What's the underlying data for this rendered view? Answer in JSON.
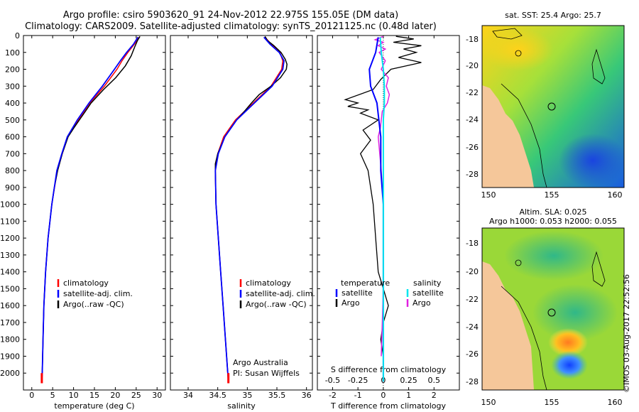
{
  "title": {
    "line1": "Argo profile: csiro 5903620_91 24-Nov-2012 22.975S 155.05E (DM data)",
    "line2": "Climatology: CARS2009. Satellite-adjusted climatology: synTS_20121125.nc (0.48d later)"
  },
  "colors": {
    "climatology": "#ff0000",
    "satellite": "#0000ff",
    "argo": "#000000",
    "sal_satellite": "#00e5ee",
    "sal_argo": "#e020e0",
    "land": "#f5c79a"
  },
  "chart_data": [
    {
      "type": "line",
      "id": "temperature",
      "xlabel": "temperature (deg C)",
      "ylabel": "",
      "xlim": [
        -2,
        32
      ],
      "ylim": [
        2100,
        0
      ],
      "xticks": [
        0,
        5,
        10,
        15,
        20,
        25,
        30
      ],
      "yticks": [
        0,
        100,
        200,
        300,
        400,
        500,
        600,
        700,
        800,
        900,
        1000,
        1100,
        1200,
        1300,
        1400,
        1500,
        1600,
        1700,
        1800,
        1900,
        2000
      ],
      "legend": [
        "climatology",
        "satellite-adj. clim.",
        "Argo(..raw -QC)"
      ],
      "series": [
        {
          "name": "climatology",
          "depth": [
            10,
            50,
            100,
            150,
            200,
            300,
            400,
            500,
            600,
            700,
            800,
            1000,
            1200,
            1400,
            1600,
            1800,
            2000,
            2050
          ],
          "values": [
            25.6,
            24.6,
            23.0,
            21.6,
            20.4,
            17.4,
            13.9,
            11.1,
            8.6,
            7.3,
            6.1,
            4.8,
            3.9,
            3.3,
            2.9,
            2.7,
            2.5,
            2.4
          ]
        },
        {
          "name": "satellite-adj. clim.",
          "depth": [
            10,
            50,
            100,
            150,
            200,
            300,
            400,
            500,
            600,
            700,
            800,
            1000,
            1200,
            1400,
            1600,
            1800,
            2000,
            2050
          ],
          "values": [
            25.4,
            24.4,
            22.7,
            21.2,
            19.8,
            16.9,
            13.7,
            10.9,
            8.5,
            7.2,
            6.0,
            4.8,
            3.9,
            3.3,
            2.9,
            2.7,
            2.5,
            2.4
          ]
        },
        {
          "name": "Argo(..raw -QC)",
          "depth": [
            5,
            30,
            70,
            120,
            180,
            250,
            320,
            400,
            450,
            500,
            550,
            600,
            700,
            800,
            900,
            1000,
            1200,
            1400,
            1600,
            1800,
            2000
          ],
          "values": [
            25.9,
            25.3,
            24.6,
            23.8,
            22.4,
            20.1,
            17.2,
            14.2,
            12.8,
            11.4,
            10.0,
            8.7,
            7.3,
            6.2,
            5.4,
            4.8,
            3.9,
            3.3,
            2.9,
            2.7,
            2.5
          ]
        }
      ]
    },
    {
      "type": "line",
      "id": "salinity",
      "xlabel": "salinity",
      "ylabel": "",
      "xlim": [
        33.7,
        36.1
      ],
      "ylim": [
        2100,
        0
      ],
      "xticks": [
        34,
        34.5,
        35,
        35.5,
        36
      ],
      "legend": [
        "climatology",
        "satellite-adj. clim.",
        "Argo(..raw -QC)"
      ],
      "annotation": [
        "Argo Australia",
        "PI: Susan Wijffels"
      ],
      "series": [
        {
          "name": "climatology",
          "depth": [
            10,
            50,
            100,
            150,
            200,
            300,
            400,
            500,
            600,
            700,
            800,
            1000,
            1200,
            1400,
            1600,
            1800,
            2000,
            2050
          ],
          "values": [
            35.3,
            35.4,
            35.55,
            35.6,
            35.58,
            35.4,
            35.1,
            34.8,
            34.6,
            34.5,
            34.46,
            34.47,
            34.51,
            34.55,
            34.59,
            34.63,
            34.67,
            34.68
          ]
        },
        {
          "name": "satellite-adj. clim.",
          "depth": [
            10,
            50,
            100,
            150,
            200,
            300,
            400,
            500,
            600,
            700,
            800,
            1000,
            1200,
            1400,
            1600,
            1800,
            2000,
            2050
          ],
          "values": [
            35.28,
            35.38,
            35.54,
            35.62,
            35.6,
            35.42,
            35.12,
            34.82,
            34.62,
            34.51,
            34.46,
            34.47,
            34.51,
            34.55,
            34.59,
            34.63,
            34.67,
            34.68
          ]
        },
        {
          "name": "Argo(..raw -QC)",
          "depth": [
            5,
            30,
            60,
            100,
            140,
            170,
            200,
            250,
            300,
            350,
            400,
            450,
            500,
            600,
            700,
            760,
            800,
            1000,
            1200,
            1400,
            1600,
            1800,
            2000
          ],
          "values": [
            35.3,
            35.34,
            35.45,
            35.57,
            35.64,
            35.67,
            35.66,
            35.56,
            35.4,
            35.2,
            35.07,
            34.95,
            34.82,
            34.62,
            34.5,
            34.46,
            34.46,
            34.47,
            34.51,
            34.55,
            34.59,
            34.63,
            34.67
          ]
        }
      ]
    },
    {
      "type": "line",
      "id": "difference",
      "xlabel": "T difference from climatology",
      "xlabel2": "S difference from climatology",
      "xlim": [
        -2.6,
        3.0
      ],
      "ylim": [
        2100,
        0
      ],
      "xticks": [
        -2,
        -1,
        0,
        1,
        2
      ],
      "xticks_s": [
        -0.5,
        -0.25,
        0,
        0.25,
        0.5
      ],
      "legend_titles": [
        "temperature",
        "salinity"
      ],
      "legend": [
        "satellite",
        "Argo",
        "satellite",
        "Argo"
      ],
      "series": [
        {
          "name": "temperature satellite",
          "depth": [
            10,
            100,
            200,
            300,
            400,
            600,
            800,
            1000,
            1500,
            2000,
            2050
          ],
          "values": [
            -0.2,
            -0.3,
            -0.55,
            -0.5,
            -0.25,
            -0.1,
            -0.1,
            0,
            0,
            0,
            0
          ]
        },
        {
          "name": "temperature Argo",
          "depth": [
            5,
            20,
            40,
            60,
            80,
            100,
            130,
            160,
            200,
            260,
            320,
            380,
            400,
            420,
            440,
            460,
            500,
            560,
            620,
            700,
            800,
            900,
            1000,
            1200,
            1400,
            1500,
            1600,
            1700,
            1800,
            1900,
            2000,
            2050
          ],
          "values": [
            0.5,
            1.2,
            0.4,
            1.5,
            0.8,
            1.3,
            0.6,
            1.5,
            0.3,
            -0.1,
            -0.4,
            -1.5,
            -1.0,
            -1.4,
            -0.6,
            -0.9,
            -0.2,
            -0.8,
            -0.5,
            -0.9,
            -0.6,
            -0.5,
            -0.4,
            -0.3,
            -0.2,
            0,
            0.2,
            0,
            -0.1,
            0,
            0,
            0
          ]
        },
        {
          "name": "salinity satellite",
          "depth": [
            10,
            100,
            200,
            300,
            400,
            500,
            600,
            800,
            1000,
            1500,
            2000,
            2050
          ],
          "values": [
            -0.03,
            -0.02,
            0,
            0.01,
            0.01,
            0,
            0,
            0,
            0,
            0,
            0,
            0
          ]
        },
        {
          "name": "salinity Argo",
          "depth": [
            5,
            25,
            40,
            60,
            80,
            100,
            150,
            200,
            250,
            300,
            350,
            400,
            450,
            500,
            550,
            600,
            800,
            1000,
            1500,
            1900
          ],
          "values": [
            0,
            -0.08,
            0,
            -0.05,
            0.02,
            -0.04,
            0.02,
            -0.02,
            0.05,
            0.03,
            0.06,
            0.04,
            -0.01,
            -0.02,
            -0.03,
            -0.05,
            -0.02,
            0,
            0,
            -0.02
          ]
        }
      ]
    }
  ],
  "map_top": {
    "title": "sat. SST: 25.4 Argo: 25.7",
    "xticks": [
      "150",
      "155",
      "160"
    ],
    "yticks": [
      "-18",
      "-20",
      "-22",
      "-24",
      "-26",
      "-28"
    ]
  },
  "map_bottom": {
    "title1": "Altim. SLA: 0.025",
    "title2": "Argo h1000: 0.053 h2000: 0.055",
    "xticks": [
      "150",
      "155",
      "160"
    ],
    "yticks": [
      "-18",
      "-20",
      "-22",
      "-24",
      "-26",
      "-28"
    ]
  },
  "stamp": "©IMOS 03-Aug-2017 22:52:56"
}
